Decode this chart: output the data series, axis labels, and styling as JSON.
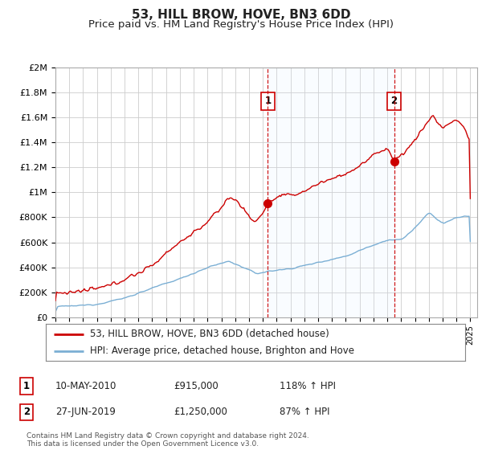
{
  "title": "53, HILL BROW, HOVE, BN3 6DD",
  "subtitle": "Price paid vs. HM Land Registry's House Price Index (HPI)",
  "title_fontsize": 11,
  "subtitle_fontsize": 9.5,
  "ylim": [
    0,
    2000000
  ],
  "yticks": [
    0,
    200000,
    400000,
    600000,
    800000,
    1000000,
    1200000,
    1400000,
    1600000,
    1800000,
    2000000
  ],
  "ytick_labels": [
    "£0",
    "£200K",
    "£400K",
    "£600K",
    "£800K",
    "£1M",
    "£1.2M",
    "£1.4M",
    "£1.6M",
    "£1.8M",
    "£2M"
  ],
  "xlim_start": 1995.0,
  "xlim_end": 2025.5,
  "sale1_x": 2010.36,
  "sale1_y": 915000,
  "sale1_label": "1",
  "sale1_date": "10-MAY-2010",
  "sale1_price": "£915,000",
  "sale1_hpi": "118% ↑ HPI",
  "sale2_x": 2019.49,
  "sale2_y": 1250000,
  "sale2_label": "2",
  "sale2_date": "27-JUN-2019",
  "sale2_price": "£1,250,000",
  "sale2_hpi": "87% ↑ HPI",
  "line_color_property": "#cc0000",
  "line_color_hpi": "#7bafd4",
  "shade_color": "#ddeeff",
  "legend_label_property": "53, HILL BROW, HOVE, BN3 6DD (detached house)",
  "legend_label_hpi": "HPI: Average price, detached house, Brighton and Hove",
  "footnote": "Contains HM Land Registry data © Crown copyright and database right 2024.\nThis data is licensed under the Open Government Licence v3.0.",
  "bg_color": "#ffffff",
  "plot_bg_color": "#ffffff",
  "grid_color": "#cccccc"
}
